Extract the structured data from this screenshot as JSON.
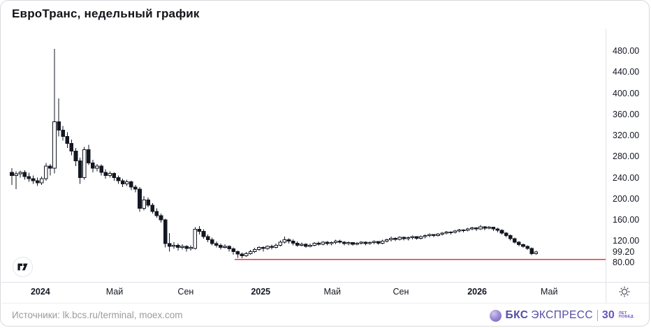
{
  "header": {
    "title": "ЕвроТранс, недельный график"
  },
  "footer": {
    "sources": "Источники: lk.bcs.ru/terminal, moex.com",
    "bks_logo": {
      "brand_bold": "БКС",
      "brand_rest": "ЭКСПРЕСС",
      "anniversary_number": "30",
      "anniversary_line1": "ЛЕТ",
      "anniversary_line2": "ПОБЕД"
    }
  },
  "chart_data": {
    "type": "candlestick",
    "title": "ЕвроТранс, недельный график",
    "timeframe": "weekly",
    "grid": false,
    "legend": "none",
    "y_axis": {
      "side": "right",
      "ticks": [
        480,
        440,
        400,
        360,
        320,
        280,
        240,
        200,
        160,
        120,
        80
      ],
      "tick_format": "0.00",
      "range_shown": [
        60,
        500
      ],
      "last_price": 99.2,
      "last_price_label": "99.20"
    },
    "x_axis": {
      "ticks": [
        {
          "label": "2024",
          "week": 6.7,
          "strong": true
        },
        {
          "label": "Май",
          "week": 24.1,
          "strong": false
        },
        {
          "label": "Сен",
          "week": 40.8,
          "strong": false
        },
        {
          "label": "2025",
          "week": 58.4,
          "strong": true
        },
        {
          "label": "Май",
          "week": 75.2,
          "strong": false
        },
        {
          "label": "Сен",
          "week": 91.3,
          "strong": false
        },
        {
          "label": "2026",
          "week": 109.2,
          "strong": true
        },
        {
          "label": "Май",
          "week": 126.1,
          "strong": false
        }
      ]
    },
    "support_line": {
      "price": 85,
      "from_week": 52.3,
      "color": "#e8343c"
    },
    "colors": {
      "up_fill": "#ffffff",
      "down_fill": "#131722",
      "outline": "#131722",
      "wick": "#131722",
      "axis_line": "#e0e3eb",
      "label": "#131722"
    },
    "candles": [
      [
        250,
        258,
        226,
        244
      ],
      [
        244,
        252,
        218,
        247
      ],
      [
        247,
        253,
        240,
        250
      ],
      [
        250,
        254,
        236,
        242
      ],
      [
        242,
        249,
        232,
        238
      ],
      [
        238,
        244,
        228,
        234
      ],
      [
        234,
        240,
        224,
        230
      ],
      [
        230,
        242,
        226,
        238
      ],
      [
        238,
        268,
        234,
        262
      ],
      [
        262,
        266,
        244,
        258
      ],
      [
        258,
        484,
        248,
        346
      ],
      [
        346,
        390,
        318,
        330
      ],
      [
        330,
        338,
        310,
        318
      ],
      [
        318,
        326,
        296,
        305
      ],
      [
        305,
        312,
        282,
        290
      ],
      [
        290,
        296,
        262,
        272
      ],
      [
        272,
        278,
        228,
        240
      ],
      [
        240,
        298,
        236,
        293
      ],
      [
        293,
        302,
        264,
        268
      ],
      [
        268,
        274,
        250,
        258
      ],
      [
        258,
        266,
        252,
        262
      ],
      [
        262,
        265,
        244,
        250
      ],
      [
        250,
        256,
        238,
        244
      ],
      [
        244,
        252,
        240,
        248
      ],
      [
        248,
        250,
        234,
        240
      ],
      [
        240,
        244,
        228,
        234
      ],
      [
        234,
        238,
        222,
        228
      ],
      [
        228,
        236,
        224,
        232
      ],
      [
        232,
        234,
        216,
        222
      ],
      [
        222,
        226,
        212,
        218
      ],
      [
        218,
        222,
        175,
        182
      ],
      [
        182,
        205,
        178,
        198
      ],
      [
        198,
        202,
        184,
        188
      ],
      [
        188,
        192,
        172,
        176
      ],
      [
        176,
        182,
        164,
        168
      ],
      [
        168,
        172,
        155,
        160
      ],
      [
        160,
        162,
        108,
        115
      ],
      [
        115,
        135,
        100,
        110
      ],
      [
        110,
        118,
        105,
        112
      ],
      [
        112,
        115,
        102,
        108
      ],
      [
        108,
        114,
        104,
        110
      ],
      [
        110,
        112,
        100,
        106
      ],
      [
        106,
        112,
        102,
        108
      ],
      [
        106,
        146,
        104,
        142
      ],
      [
        142,
        148,
        132,
        138
      ],
      [
        138,
        142,
        124,
        128
      ],
      [
        128,
        132,
        118,
        122
      ],
      [
        122,
        126,
        112,
        115
      ],
      [
        115,
        119,
        108,
        112
      ],
      [
        112,
        115,
        104,
        108
      ],
      [
        108,
        114,
        106,
        110
      ],
      [
        110,
        112,
        100,
        105
      ],
      [
        105,
        108,
        94,
        100
      ],
      [
        100,
        102,
        88,
        95
      ],
      [
        95,
        98,
        87,
        92
      ],
      [
        92,
        99,
        90,
        96
      ],
      [
        96,
        103,
        94,
        100
      ],
      [
        100,
        107,
        97,
        104
      ],
      [
        104,
        110,
        101,
        108
      ],
      [
        108,
        110,
        100,
        106
      ],
      [
        106,
        112,
        103,
        110
      ],
      [
        110,
        113,
        104,
        108
      ],
      [
        108,
        115,
        106,
        112
      ],
      [
        112,
        121,
        110,
        118
      ],
      [
        118,
        128,
        115,
        122
      ],
      [
        122,
        125,
        115,
        120
      ],
      [
        120,
        123,
        112,
        116
      ],
      [
        116,
        119,
        109,
        112
      ],
      [
        112,
        117,
        110,
        114
      ],
      [
        114,
        116,
        107,
        110
      ],
      [
        110,
        115,
        108,
        112
      ],
      [
        112,
        118,
        110,
        116
      ],
      [
        116,
        119,
        111,
        114
      ],
      [
        114,
        120,
        112,
        118
      ],
      [
        118,
        120,
        112,
        115
      ],
      [
        115,
        119,
        112,
        117
      ],
      [
        117,
        122,
        114,
        120
      ],
      [
        120,
        122,
        115,
        118
      ],
      [
        118,
        120,
        112,
        115
      ],
      [
        115,
        119,
        112,
        117
      ],
      [
        117,
        118,
        111,
        114
      ],
      [
        114,
        118,
        112,
        116
      ],
      [
        116,
        120,
        113,
        118
      ],
      [
        118,
        119,
        112,
        115
      ],
      [
        115,
        119,
        113,
        117
      ],
      [
        117,
        121,
        114,
        119
      ],
      [
        119,
        120,
        113,
        116
      ],
      [
        116,
        122,
        114,
        120
      ],
      [
        120,
        124,
        117,
        122
      ],
      [
        122,
        128,
        119,
        125
      ],
      [
        125,
        127,
        120,
        123
      ],
      [
        123,
        129,
        121,
        127
      ],
      [
        127,
        128,
        121,
        124
      ],
      [
        124,
        128,
        121,
        126
      ],
      [
        126,
        130,
        123,
        128
      ],
      [
        128,
        129,
        122,
        125
      ],
      [
        125,
        130,
        123,
        128
      ],
      [
        128,
        132,
        125,
        130
      ],
      [
        130,
        134,
        127,
        132
      ],
      [
        132,
        133,
        127,
        130
      ],
      [
        130,
        135,
        128,
        133
      ],
      [
        133,
        137,
        130,
        135
      ],
      [
        135,
        139,
        132,
        137
      ],
      [
        137,
        138,
        132,
        136
      ],
      [
        136,
        141,
        134,
        139
      ],
      [
        139,
        143,
        136,
        141
      ],
      [
        141,
        142,
        136,
        140
      ],
      [
        140,
        145,
        138,
        143
      ],
      [
        143,
        147,
        140,
        145
      ],
      [
        145,
        146,
        139,
        143
      ],
      [
        143,
        150,
        141,
        147
      ],
      [
        147,
        148,
        140,
        144
      ],
      [
        144,
        148,
        142,
        146
      ],
      [
        146,
        147,
        139,
        143
      ],
      [
        143,
        145,
        136,
        140
      ],
      [
        140,
        142,
        132,
        135
      ],
      [
        135,
        137,
        127,
        130
      ],
      [
        130,
        132,
        121,
        124
      ],
      [
        124,
        126,
        115,
        118
      ],
      [
        118,
        120,
        110,
        113
      ],
      [
        113,
        115,
        107,
        110
      ],
      [
        110,
        112,
        103,
        106
      ],
      [
        106,
        108,
        93,
        96
      ],
      [
        96,
        101,
        94,
        99.2
      ]
    ]
  },
  "icons": {
    "tradingview": "tradingview-logo",
    "settings": "gear-icon"
  }
}
